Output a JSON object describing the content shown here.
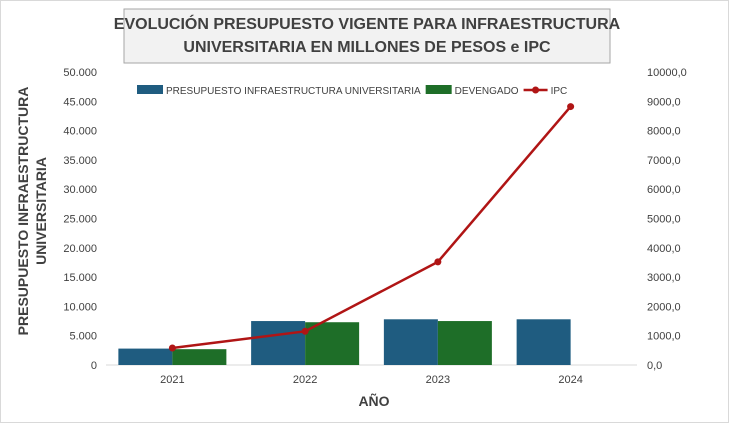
{
  "chart_data": {
    "type": "bar",
    "title_lines": [
      "EVOLUCIÓN PRESUPUESTO VIGENTE PARA INFRAESTRUCTURA",
      "UNIVERSITARIA EN MILLONES DE PESOS e IPC"
    ],
    "xlabel": "AÑO",
    "ylabel_lines": [
      "PRESUPUESTO INFRAESTRUCTURA",
      "UNIVERSITARIA"
    ],
    "categories": [
      "2021",
      "2022",
      "2023",
      "2024"
    ],
    "y_left": {
      "min": 0,
      "max": 50000,
      "step": 5000,
      "tick_labels": [
        "0",
        "5.000",
        "10.000",
        "15.000",
        "20.000",
        "25.000",
        "30.000",
        "35.000",
        "40.000",
        "45.000",
        "50.000"
      ]
    },
    "y_right": {
      "min": 0,
      "max": 10000,
      "step": 1000,
      "tick_labels": [
        "0,0",
        "1000,0",
        "2000,0",
        "3000,0",
        "4000,0",
        "5000,0",
        "6000,0",
        "7000,0",
        "8000,0",
        "9000,0",
        "10000,0"
      ]
    },
    "series": [
      {
        "name": "PRESUPUESTO INFRAESTRUCTURA UNIVERSITARIA",
        "kind": "bar",
        "axis": "left",
        "color": "#1f5c80",
        "values": [
          2800,
          7500,
          7800,
          7800
        ]
      },
      {
        "name": "DEVENGADO",
        "kind": "bar",
        "axis": "left",
        "color": "#1e6e28",
        "values": [
          2700,
          7300,
          7500,
          null
        ]
      },
      {
        "name": "IPC",
        "kind": "line",
        "axis": "right",
        "color": "#b01515",
        "values": [
          580,
          1150,
          3520,
          8820
        ]
      }
    ],
    "legend_position": "top",
    "grid": false
  }
}
